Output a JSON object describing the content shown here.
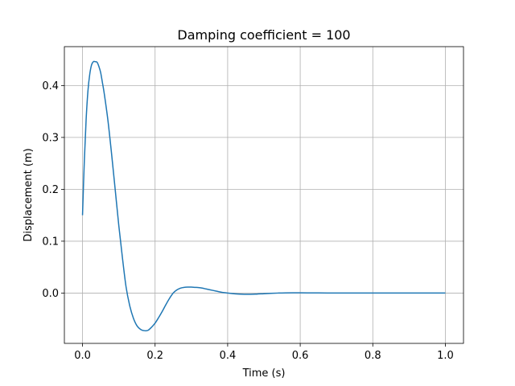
{
  "chart_data": {
    "type": "line",
    "title": "Damping coefficient = 100",
    "xlabel": "Time (s)",
    "ylabel": "Displacement (m)",
    "xlim": [
      -0.05,
      1.05
    ],
    "ylim": [
      -0.097,
      0.475
    ],
    "xticks": [
      0.0,
      0.2,
      0.4,
      0.6,
      0.8,
      1.0
    ],
    "xtick_labels": [
      "0.0",
      "0.2",
      "0.4",
      "0.6",
      "0.8",
      "1.0"
    ],
    "yticks": [
      0.0,
      0.1,
      0.2,
      0.3,
      0.4
    ],
    "ytick_labels": [
      "0.0",
      "0.1",
      "0.2",
      "0.3",
      "0.4"
    ],
    "grid": true,
    "legend": false,
    "series": [
      {
        "color": "#1f77b4",
        "x": [
          0.0,
          0.005,
          0.01,
          0.015,
          0.02,
          0.025,
          0.03,
          0.035,
          0.04,
          0.045,
          0.05,
          0.055,
          0.06,
          0.07,
          0.08,
          0.09,
          0.1,
          0.11,
          0.12,
          0.13,
          0.14,
          0.15,
          0.16,
          0.17,
          0.18,
          0.19,
          0.2,
          0.21,
          0.22,
          0.23,
          0.24,
          0.25,
          0.26,
          0.27,
          0.28,
          0.29,
          0.3,
          0.31,
          0.32,
          0.33,
          0.34,
          0.35,
          0.36,
          0.37,
          0.38,
          0.39,
          0.4,
          0.42,
          0.44,
          0.46,
          0.48,
          0.5,
          0.52,
          0.54,
          0.56,
          0.58,
          0.6,
          0.65,
          0.7,
          0.75,
          0.8,
          0.85,
          0.9,
          0.95,
          1.0
        ],
        "y": [
          0.15,
          0.255,
          0.335,
          0.39,
          0.422,
          0.44,
          0.446,
          0.446,
          0.445,
          0.437,
          0.425,
          0.405,
          0.384,
          0.333,
          0.269,
          0.2,
          0.13,
          0.068,
          0.012,
          -0.024,
          -0.048,
          -0.063,
          -0.07,
          -0.0725,
          -0.072,
          -0.066,
          -0.058,
          -0.047,
          -0.035,
          -0.022,
          -0.01,
          0.0,
          0.006,
          0.0095,
          0.011,
          0.0115,
          0.0115,
          0.011,
          0.0105,
          0.0095,
          0.008,
          0.0065,
          0.005,
          0.0035,
          0.002,
          0.0008,
          0.0,
          -0.0015,
          -0.0022,
          -0.0025,
          -0.002,
          -0.0012,
          -0.0005,
          0.0,
          0.0003,
          0.0004,
          0.0004,
          0.0002,
          0.0,
          0.0,
          0.0,
          0.0,
          0.0,
          0.0,
          0.0
        ]
      }
    ]
  }
}
